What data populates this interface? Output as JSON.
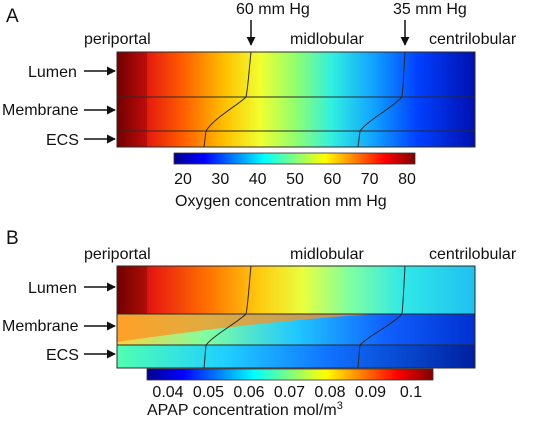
{
  "panel_a": {
    "letter": "A",
    "top_labels": {
      "left": "periportal",
      "mid": "midlobular",
      "right": "centrilobular"
    },
    "pressure_markers": [
      {
        "text": "60 mm Hg"
      },
      {
        "text": "35 mm Hg"
      }
    ],
    "row_labels": [
      "Lumen",
      "Membrane",
      "ECS"
    ],
    "colorbar": {
      "ticks": [
        "20",
        "30",
        "40",
        "50",
        "60",
        "70",
        "80"
      ],
      "range": [
        20,
        80
      ],
      "title": "Oxygen concentration mm Hg"
    }
  },
  "panel_b": {
    "letter": "B",
    "top_labels": {
      "left": "periportal",
      "mid": "midlobular",
      "right": "centrilobular"
    },
    "row_labels": [
      "Lumen",
      "Membrane",
      "ECS"
    ],
    "colorbar": {
      "ticks": [
        "0.04",
        "0.05",
        "0.06",
        "0.07",
        "0.08",
        "0.09",
        "0.1"
      ],
      "range": [
        0.04,
        0.1
      ],
      "title": "APAP concentration mol/m",
      "title_superscript": "3"
    }
  },
  "colors": {
    "jet": [
      "#00008f",
      "#0000ff",
      "#0080ff",
      "#00ffff",
      "#80ff80",
      "#ffff00",
      "#ff8000",
      "#ff0000",
      "#800000"
    ]
  }
}
